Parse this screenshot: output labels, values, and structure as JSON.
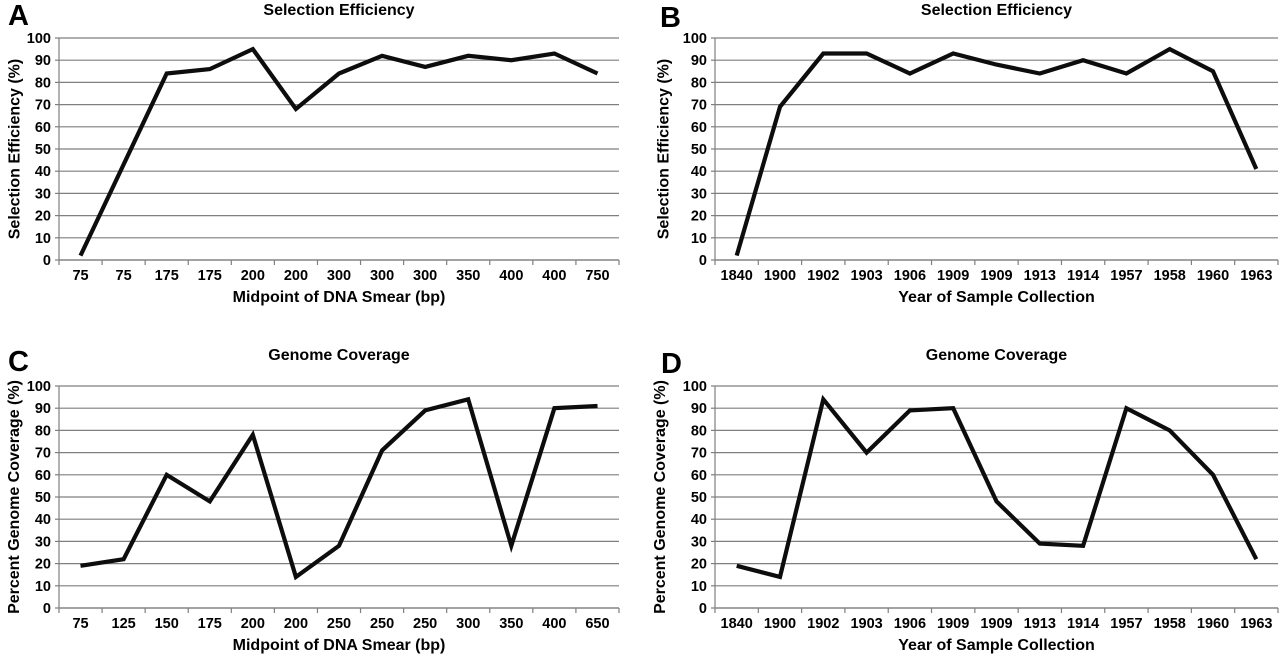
{
  "figure": {
    "background_color": "#ffffff",
    "text_color": "#000000",
    "line_color": "#0d0d0d",
    "grid_color": "#7f7f7f"
  },
  "chart_data": [
    {
      "panel_label": "A",
      "type": "line",
      "title": "Selection Efficiency",
      "xlabel": "Midpoint of DNA Smear (bp)",
      "ylabel": "Selection Efficiency (%)",
      "categories": [
        "75",
        "75",
        "175",
        "175",
        "200",
        "200",
        "300",
        "300",
        "300",
        "350",
        "400",
        "400",
        "750"
      ],
      "values": [
        2,
        43,
        84,
        86,
        95,
        68,
        84,
        92,
        87,
        92,
        90,
        93,
        84
      ],
      "ylim": [
        0,
        100
      ],
      "ytick_step": 10,
      "grid": true,
      "legend": "none"
    },
    {
      "panel_label": "B",
      "type": "line",
      "title": "Selection Efficiency",
      "xlabel": "Year of Sample Collection",
      "ylabel": "Selection Efficiency (%)",
      "categories": [
        "1840",
        "1900",
        "1902",
        "1903",
        "1906",
        "1909",
        "1909",
        "1913",
        "1914",
        "1957",
        "1958",
        "1960",
        "1963"
      ],
      "values": [
        2,
        69,
        93,
        93,
        84,
        93,
        88,
        84,
        90,
        84,
        95,
        85,
        41
      ],
      "ylim": [
        0,
        100
      ],
      "ytick_step": 10,
      "grid": true,
      "legend": "none"
    },
    {
      "panel_label": "C",
      "type": "line",
      "title": "Genome Coverage",
      "xlabel": "Midpoint of DNA Smear (bp)",
      "ylabel": "Percent Genome Coverage (%)",
      "categories": [
        "75",
        "125",
        "150",
        "175",
        "200",
        "200",
        "250",
        "250",
        "250",
        "300",
        "350",
        "400",
        "650"
      ],
      "values": [
        19,
        22,
        60,
        48,
        78,
        14,
        28,
        71,
        89,
        94,
        28,
        90,
        91
      ],
      "ylim": [
        0,
        100
      ],
      "ytick_step": 10,
      "grid": true,
      "legend": "none"
    },
    {
      "panel_label": "D",
      "type": "line",
      "title": "Genome Coverage",
      "xlabel": "Year of Sample Collection",
      "ylabel": "Percent Genome Coverage (%)",
      "categories": [
        "1840",
        "1900",
        "1902",
        "1903",
        "1906",
        "1909",
        "1909",
        "1913",
        "1914",
        "1957",
        "1958",
        "1960",
        "1963"
      ],
      "values": [
        19,
        14,
        94,
        70,
        89,
        90,
        48,
        29,
        28,
        90,
        80,
        60,
        22
      ],
      "ylim": [
        0,
        100
      ],
      "ytick_step": 10,
      "grid": true,
      "legend": "none"
    }
  ]
}
